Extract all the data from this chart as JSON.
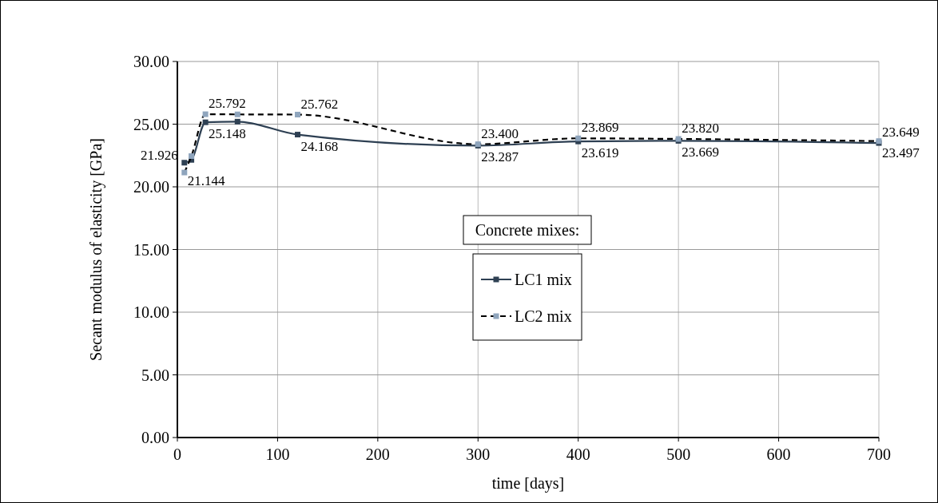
{
  "chart_data": {
    "type": "line",
    "xlabel": "time [days]",
    "ylabel": "Secant modulus of elasticity [GPa]",
    "legend_title": "Concrete mixes:",
    "legend": "center",
    "grid": true,
    "marker": "square",
    "xlim": [
      0,
      700
    ],
    "xticks": [
      0,
      100,
      200,
      300,
      400,
      500,
      600,
      700
    ],
    "ylim": [
      0,
      30
    ],
    "yticks": [
      {
        "value": 0,
        "label": "0.00"
      },
      {
        "value": 5,
        "label": "5.00"
      },
      {
        "value": 10,
        "label": "10.00"
      },
      {
        "value": 15,
        "label": "15.00"
      },
      {
        "value": 20,
        "label": "20.00"
      },
      {
        "value": 25,
        "label": "25.00"
      },
      {
        "value": 30,
        "label": "30.00"
      }
    ],
    "series": [
      {
        "name": "LC1 mix",
        "color": "#2e4053",
        "line_style": "solid",
        "x": [
          7,
          14,
          28,
          60,
          120,
          300,
          400,
          500,
          700
        ],
        "values": [
          21.926,
          22.15,
          25.148,
          25.2,
          24.168,
          23.287,
          23.619,
          23.669,
          23.497
        ],
        "value_labels": [
          "21.926",
          null,
          "25.148",
          null,
          "24.168",
          "23.287",
          "23.619",
          "23.669",
          "23.497"
        ]
      },
      {
        "name": "LC2 mix",
        "color": "#8fa5bd",
        "line_style": "dashed",
        "x": [
          7,
          14,
          28,
          60,
          120,
          300,
          400,
          500,
          700
        ],
        "values": [
          21.144,
          22.45,
          25.792,
          25.78,
          25.762,
          23.4,
          23.869,
          23.82,
          23.649
        ],
        "value_labels": [
          "21.144",
          null,
          "25.792",
          null,
          "25.762",
          "23.400",
          "23.869",
          "23.820",
          "23.649"
        ]
      }
    ]
  }
}
